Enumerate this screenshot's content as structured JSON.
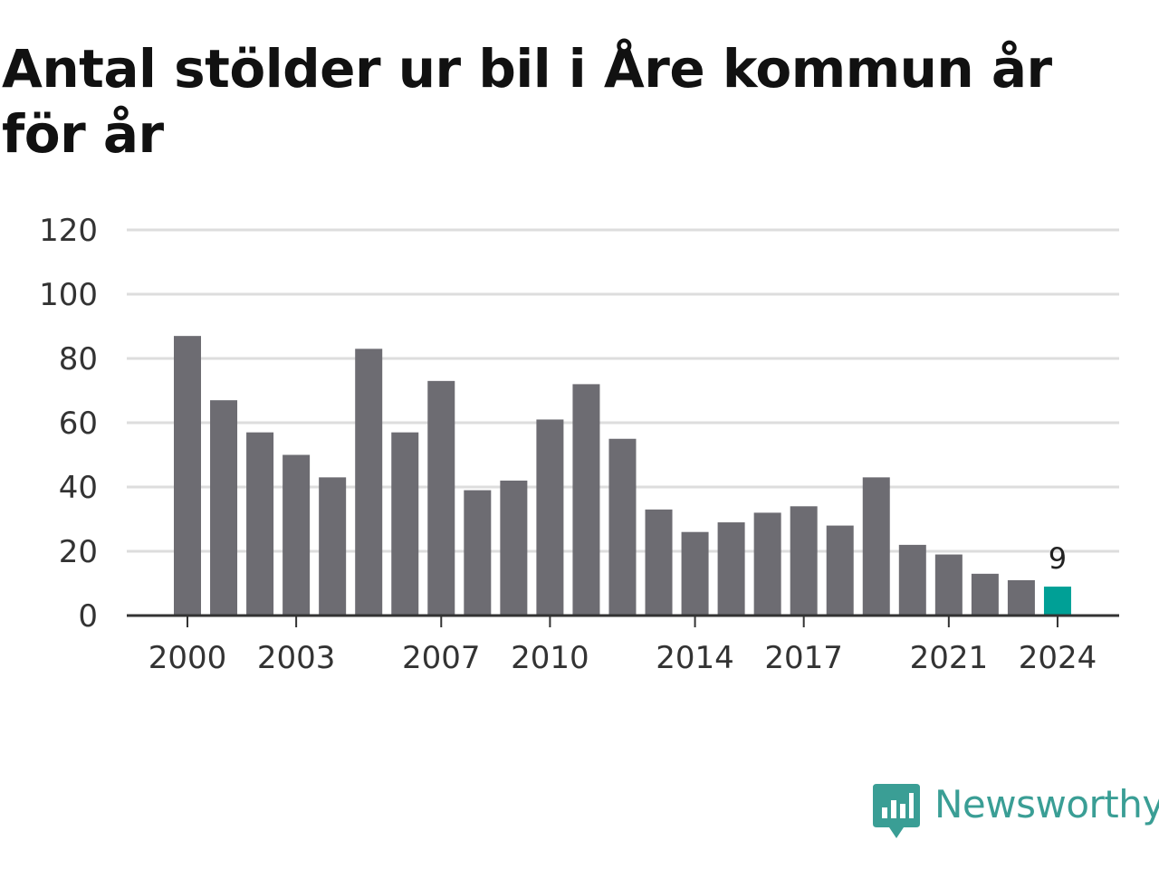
{
  "chart_data": {
    "type": "bar",
    "title": "Antal stölder ur bil i Åre kommun år för år",
    "xlabel": "",
    "ylabel": "",
    "ylim": [
      0,
      120
    ],
    "yticks": [
      "0",
      "20",
      "40",
      "60",
      "80",
      "100",
      "120"
    ],
    "categories": [
      "2000",
      "2001",
      "2002",
      "2003",
      "2004",
      "2005",
      "2006",
      "2007",
      "2008",
      "2009",
      "2010",
      "2011",
      "2012",
      "2013",
      "2014",
      "2015",
      "2016",
      "2017",
      "2018",
      "2019",
      "2020",
      "2021",
      "2022",
      "2023",
      "2024"
    ],
    "values": [
      87,
      67,
      57,
      50,
      43,
      83,
      57,
      73,
      39,
      42,
      61,
      72,
      55,
      33,
      26,
      29,
      32,
      34,
      28,
      43,
      22,
      19,
      13,
      11,
      9
    ],
    "xtick_labels": [
      "2000",
      "2003",
      "2007",
      "2010",
      "2014",
      "2017",
      "2021",
      "2024"
    ],
    "highlight": {
      "category": "2024",
      "value_label": "9"
    },
    "grid": true,
    "colors": {
      "bar": "#6d6c72",
      "highlight": "#00a096",
      "grid": "#dddddd",
      "axis": "#333333"
    }
  },
  "brand": {
    "name": "Newsworthy",
    "color": "#3a9e95"
  }
}
